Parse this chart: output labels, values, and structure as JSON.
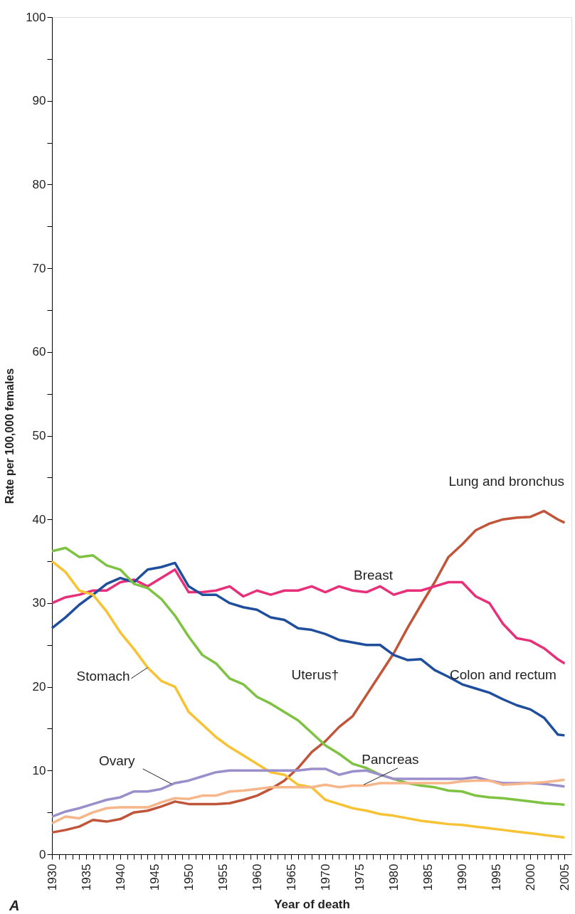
{
  "chart_data": {
    "type": "line",
    "xlabel": "Year of death",
    "ylabel": "Rate per 100,000 females",
    "annotations": [
      "A"
    ],
    "x": [
      1930,
      1932,
      1934,
      1936,
      1938,
      1940,
      1942,
      1944,
      1946,
      1948,
      1950,
      1952,
      1954,
      1956,
      1958,
      1960,
      1962,
      1964,
      1966,
      1968,
      1970,
      1972,
      1974,
      1976,
      1978,
      1980,
      1982,
      1984,
      1986,
      1988,
      1990,
      1992,
      1994,
      1996,
      1998,
      2000,
      2002,
      2004,
      2005
    ],
    "series": [
      {
        "name": "Lung and bronchus",
        "color": "#c0553a",
        "values": [
          2.6,
          2.9,
          3.3,
          4.1,
          3.9,
          4.2,
          5.0,
          5.2,
          5.7,
          6.3,
          6.0,
          6.0,
          6.0,
          6.1,
          6.5,
          7.0,
          7.8,
          8.8,
          10.3,
          12.2,
          13.5,
          15.2,
          16.5,
          19.0,
          21.5,
          24.0,
          27.0,
          29.8,
          32.5,
          35.5,
          37.0,
          38.7,
          39.5,
          40.0,
          40.2,
          40.3,
          41.0,
          40.0,
          39.6
        ]
      },
      {
        "name": "Breast",
        "color": "#e8307a",
        "values": [
          30.0,
          30.7,
          31.0,
          31.5,
          31.5,
          32.5,
          32.8,
          32.0,
          33.0,
          34.0,
          31.3,
          31.3,
          31.5,
          32.0,
          30.8,
          31.5,
          31.0,
          31.5,
          31.5,
          32.0,
          31.3,
          32.0,
          31.5,
          31.3,
          32.0,
          31.0,
          31.5,
          31.5,
          32.0,
          32.5,
          32.5,
          30.8,
          30.0,
          27.5,
          25.8,
          25.5,
          24.6,
          23.3,
          22.8
        ]
      },
      {
        "name": "Colon and rectum",
        "color": "#1f4e9c",
        "values": [
          27.0,
          28.3,
          29.8,
          31.0,
          32.3,
          33.0,
          32.5,
          34.0,
          34.3,
          34.8,
          32.0,
          31.0,
          31.0,
          30.0,
          29.5,
          29.2,
          28.3,
          28.0,
          27.0,
          26.8,
          26.3,
          25.6,
          25.3,
          25.0,
          25.0,
          23.8,
          23.2,
          23.3,
          22.0,
          21.2,
          20.3,
          19.8,
          19.3,
          18.5,
          17.8,
          17.3,
          16.3,
          14.3,
          14.2
        ]
      },
      {
        "name": "Uterus†",
        "color": "#7dc241",
        "values": [
          36.2,
          36.6,
          35.5,
          35.7,
          34.5,
          34.0,
          32.3,
          31.8,
          30.5,
          28.5,
          26.0,
          23.8,
          22.8,
          21.0,
          20.3,
          18.8,
          18.0,
          17.0,
          16.0,
          14.5,
          13.0,
          12.0,
          10.8,
          10.3,
          9.5,
          9.0,
          8.5,
          8.2,
          8.0,
          7.6,
          7.5,
          7.0,
          6.8,
          6.7,
          6.5,
          6.3,
          6.1,
          6.0,
          5.9
        ]
      },
      {
        "name": "Stomach",
        "color": "#f7c233",
        "values": [
          35.0,
          33.7,
          31.5,
          31.0,
          29.0,
          26.5,
          24.5,
          22.3,
          20.7,
          20.0,
          17.0,
          15.5,
          14.0,
          12.8,
          11.8,
          10.8,
          9.8,
          9.5,
          8.3,
          8.0,
          6.5,
          6.0,
          5.5,
          5.2,
          4.8,
          4.6,
          4.3,
          4.0,
          3.8,
          3.6,
          3.5,
          3.3,
          3.1,
          2.9,
          2.7,
          2.5,
          2.3,
          2.1,
          2.0
        ]
      },
      {
        "name": "Ovary",
        "color": "#9a8fcb",
        "values": [
          4.5,
          5.1,
          5.5,
          6.0,
          6.5,
          6.8,
          7.5,
          7.5,
          7.8,
          8.5,
          8.8,
          9.3,
          9.8,
          10.0,
          10.0,
          10.0,
          10.0,
          10.0,
          10.0,
          10.2,
          10.2,
          9.5,
          9.9,
          10.0,
          9.5,
          9.0,
          9.0,
          9.0,
          9.0,
          9.0,
          9.0,
          9.2,
          8.8,
          8.5,
          8.5,
          8.5,
          8.4,
          8.2,
          8.1
        ]
      },
      {
        "name": "Pancreas",
        "color": "#f7b58a",
        "values": [
          3.7,
          4.5,
          4.3,
          5.0,
          5.5,
          5.6,
          5.6,
          5.6,
          6.2,
          6.7,
          6.6,
          7.0,
          7.0,
          7.5,
          7.6,
          7.8,
          8.0,
          8.0,
          8.0,
          8.0,
          8.3,
          8.0,
          8.2,
          8.2,
          8.5,
          8.5,
          8.5,
          8.5,
          8.5,
          8.5,
          8.7,
          8.8,
          8.8,
          8.3,
          8.4,
          8.5,
          8.6,
          8.8,
          8.9
        ]
      }
    ],
    "xlim": [
      1930,
      2006
    ],
    "xticks": [
      1930,
      {
        "value": 1931,
        "label": null
      },
      {
        "value": 1932,
        "label": null
      },
      {
        "value": 1933,
        "label": null
      },
      {
        "value": 1934,
        "label": null
      },
      1935,
      {
        "value": 1936,
        "label": null
      },
      {
        "value": 1937,
        "label": null
      },
      {
        "value": 1938,
        "label": null
      },
      {
        "value": 1939,
        "label": null
      },
      1940,
      {
        "value": 1941,
        "label": null
      },
      {
        "value": 1942,
        "label": null
      },
      {
        "value": 1943,
        "label": null
      },
      {
        "value": 1944,
        "label": null
      },
      1945,
      {
        "value": 1946,
        "label": null
      },
      {
        "value": 1947,
        "label": null
      },
      {
        "value": 1948,
        "label": null
      },
      {
        "value": 1949,
        "label": null
      },
      1950,
      {
        "value": 1951,
        "label": null
      },
      {
        "value": 1952,
        "label": null
      },
      {
        "value": 1953,
        "label": null
      },
      {
        "value": 1954,
        "label": null
      },
      1955,
      {
        "value": 1956,
        "label": null
      },
      {
        "value": 1957,
        "label": null
      },
      {
        "value": 1958,
        "label": null
      },
      {
        "value": 1959,
        "label": null
      },
      1960,
      {
        "value": 1961,
        "label": null
      },
      {
        "value": 1962,
        "label": null
      },
      {
        "value": 1963,
        "label": null
      },
      {
        "value": 1964,
        "label": null
      },
      1965,
      {
        "value": 1966,
        "label": null
      },
      {
        "value": 1967,
        "label": null
      },
      {
        "value": 1968,
        "label": null
      },
      {
        "value": 1969,
        "label": null
      },
      1970,
      {
        "value": 1971,
        "label": null
      },
      {
        "value": 1972,
        "label": null
      },
      {
        "value": 1973,
        "label": null
      },
      {
        "value": 1974,
        "label": null
      },
      1975,
      {
        "value": 1976,
        "label": null
      },
      {
        "value": 1977,
        "label": null
      },
      {
        "value": 1978,
        "label": null
      },
      {
        "value": 1979,
        "label": null
      },
      1980,
      {
        "value": 1981,
        "label": null
      },
      {
        "value": 1982,
        "label": null
      },
      {
        "value": 1983,
        "label": null
      },
      {
        "value": 1984,
        "label": null
      },
      1985,
      {
        "value": 1986,
        "label": null
      },
      {
        "value": 1987,
        "label": null
      },
      {
        "value": 1988,
        "label": null
      },
      {
        "value": 1989,
        "label": null
      },
      1990,
      {
        "value": 1991,
        "label": null
      },
      {
        "value": 1992,
        "label": null
      },
      {
        "value": 1993,
        "label": null
      },
      {
        "value": 1994,
        "label": null
      },
      1995,
      {
        "value": 1996,
        "label": null
      },
      {
        "value": 1997,
        "label": null
      },
      {
        "value": 1998,
        "label": null
      },
      {
        "value": 1999,
        "label": null
      },
      2000,
      {
        "value": 2001,
        "label": null
      },
      {
        "value": 2002,
        "label": null
      },
      {
        "value": 2003,
        "label": null
      },
      {
        "value": 2004,
        "label": null
      },
      2005
    ],
    "ylim": [
      0,
      100
    ],
    "yticks": [
      0,
      {
        "value": 5,
        "label": null
      },
      10,
      {
        "value": 15,
        "label": null
      },
      20,
      {
        "value": 25,
        "label": null
      },
      30,
      {
        "value": 35,
        "label": null
      },
      40,
      {
        "value": 45,
        "label": null
      },
      50,
      {
        "value": 55,
        "label": null
      },
      60,
      {
        "value": 65,
        "label": null
      },
      70,
      {
        "value": 75,
        "label": null
      },
      80,
      {
        "value": 85,
        "label": null
      },
      90,
      {
        "value": 95,
        "label": null
      },
      100
    ],
    "grid": false,
    "legend": false,
    "marker": "none",
    "line_style": "solid"
  }
}
